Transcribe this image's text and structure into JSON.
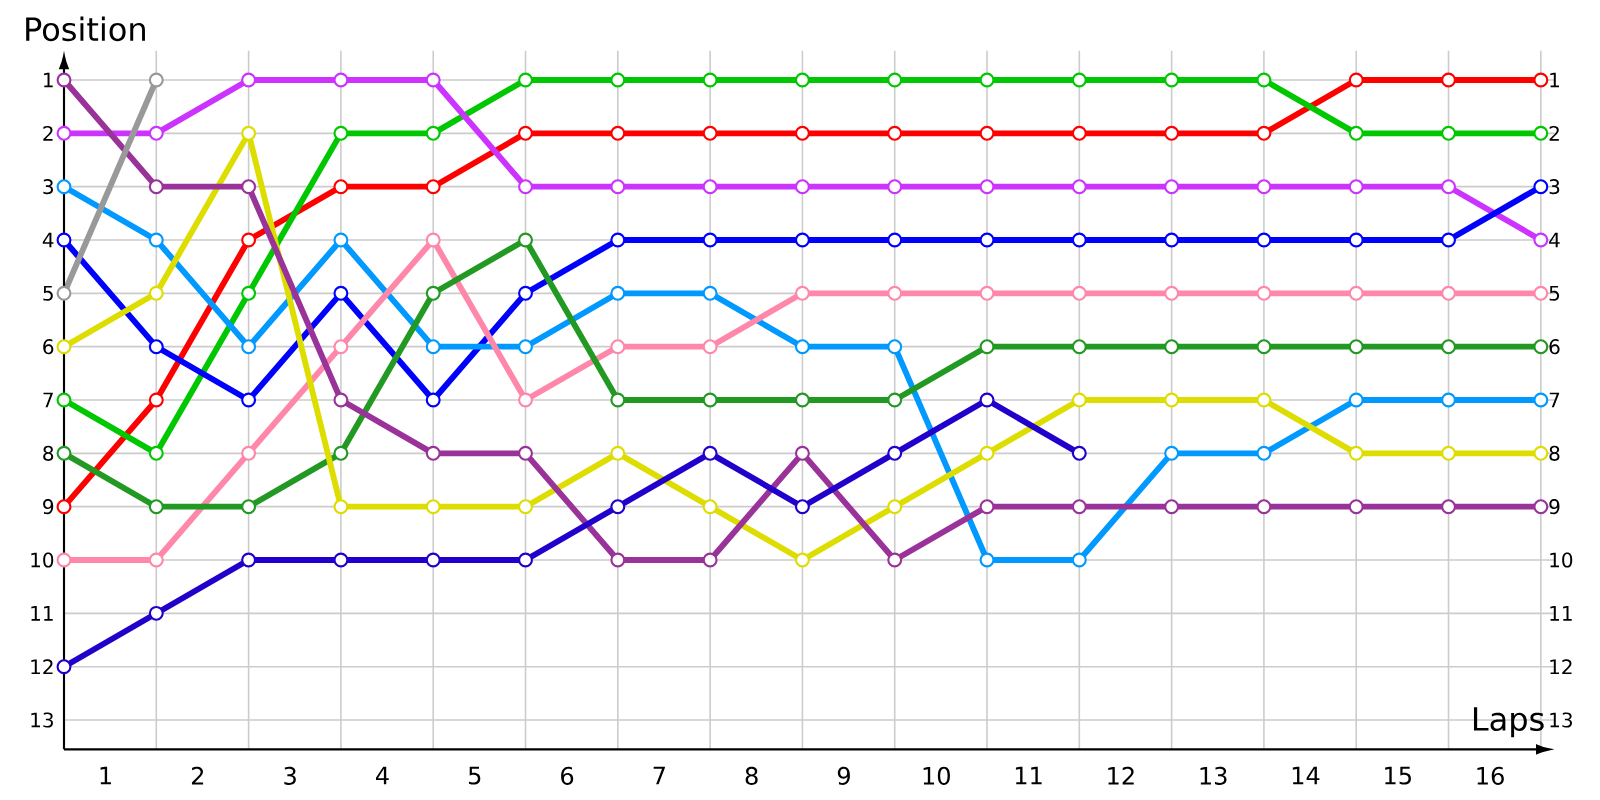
{
  "chart_data": {
    "type": "line",
    "xlabel": "Laps",
    "ylabel": "Position",
    "x": [
      0.55,
      1.55,
      2.55,
      3.55,
      4.55,
      5.55,
      6.55,
      7.55,
      8.55,
      9.55,
      10.55,
      11.55,
      12.55,
      13.55,
      14.55,
      15.55,
      16.55
    ],
    "series": [
      {
        "color": "#ff0000",
        "values": [
          9,
          7,
          4,
          3,
          3,
          2,
          2,
          2,
          2,
          2,
          2,
          2,
          2,
          2,
          1,
          1,
          1
        ]
      },
      {
        "color": "#00c800",
        "values": [
          7,
          8,
          5,
          2,
          2,
          1,
          1,
          1,
          1,
          1,
          1,
          1,
          1,
          1,
          2,
          2,
          2
        ]
      },
      {
        "color": "#cc33ff",
        "values": [
          2,
          2,
          1,
          1,
          1,
          3,
          3,
          3,
          3,
          3,
          3,
          3,
          3,
          3,
          3,
          3,
          4
        ]
      },
      {
        "color": "#0000ff",
        "values": [
          4,
          6,
          7,
          5,
          7,
          5,
          4,
          4,
          4,
          4,
          4,
          4,
          4,
          4,
          4,
          4,
          3
        ]
      },
      {
        "color": "#0099ff",
        "values": [
          3,
          4,
          6,
          4,
          6,
          6,
          5,
          5,
          6,
          6,
          10,
          10,
          8,
          8,
          7,
          7,
          7
        ]
      },
      {
        "color": "#ff88aa",
        "values": [
          10,
          10,
          8,
          6,
          4,
          7,
          6,
          6,
          5,
          5,
          5,
          5,
          5,
          5,
          5,
          5,
          5
        ]
      },
      {
        "color": "#229922",
        "values": [
          8,
          9,
          9,
          8,
          5,
          4,
          7,
          7,
          7,
          7,
          6,
          6,
          6,
          6,
          6,
          6,
          6
        ]
      },
      {
        "color": "#dddd00",
        "values": [
          6,
          5,
          2,
          9,
          9,
          9,
          8,
          9,
          10,
          9,
          8,
          7,
          7,
          7,
          8,
          8,
          8
        ]
      },
      {
        "color": "#993399",
        "values": [
          1,
          3,
          3,
          7,
          8,
          8,
          10,
          10,
          8,
          10,
          9,
          9,
          9,
          9,
          9,
          9,
          9
        ]
      },
      {
        "color": "#2200cc",
        "values": [
          12,
          11,
          10,
          10,
          10,
          10,
          9,
          8,
          9,
          8,
          7,
          8,
          null,
          null,
          null,
          null,
          null
        ]
      },
      {
        "color": "#999999",
        "values": [
          5,
          1,
          null,
          null,
          null,
          null,
          null,
          null,
          null,
          null,
          null,
          null,
          null,
          null,
          null,
          null,
          null
        ]
      }
    ],
    "xlim": [
      0.55,
      16.7
    ],
    "xticks": [
      1,
      2,
      3,
      4,
      5,
      6,
      7,
      8,
      9,
      10,
      11,
      12,
      13,
      14,
      15,
      16,
      {
        "value": 1.55,
        "label": null
      },
      {
        "value": 2.55,
        "label": null
      },
      {
        "value": 3.55,
        "label": null
      },
      {
        "value": 4.55,
        "label": null
      },
      {
        "value": 5.55,
        "label": null
      },
      {
        "value": 6.55,
        "label": null
      },
      {
        "value": 7.55,
        "label": null
      },
      {
        "value": 8.55,
        "label": null
      },
      {
        "value": 9.55,
        "label": null
      },
      {
        "value": 10.55,
        "label": null
      },
      {
        "value": 11.55,
        "label": null
      },
      {
        "value": 12.55,
        "label": null
      },
      {
        "value": 13.55,
        "label": null
      },
      {
        "value": 14.55,
        "label": null
      },
      {
        "value": 15.55,
        "label": null
      },
      {
        "value": 16.55,
        "label": null
      }
    ],
    "ylim": [
      13.55,
      0.45
    ],
    "yticks": [
      1,
      2,
      3,
      4,
      5,
      6,
      7,
      8,
      9,
      10,
      11,
      12,
      13
    ],
    "y2lim": [
      13.55,
      0.45
    ],
    "y2ticks": [
      1,
      2,
      3,
      4,
      5,
      6,
      7,
      8,
      9,
      10,
      11,
      12,
      13
    ],
    "grid": true,
    "marker": "circle",
    "line_style": "solid"
  }
}
